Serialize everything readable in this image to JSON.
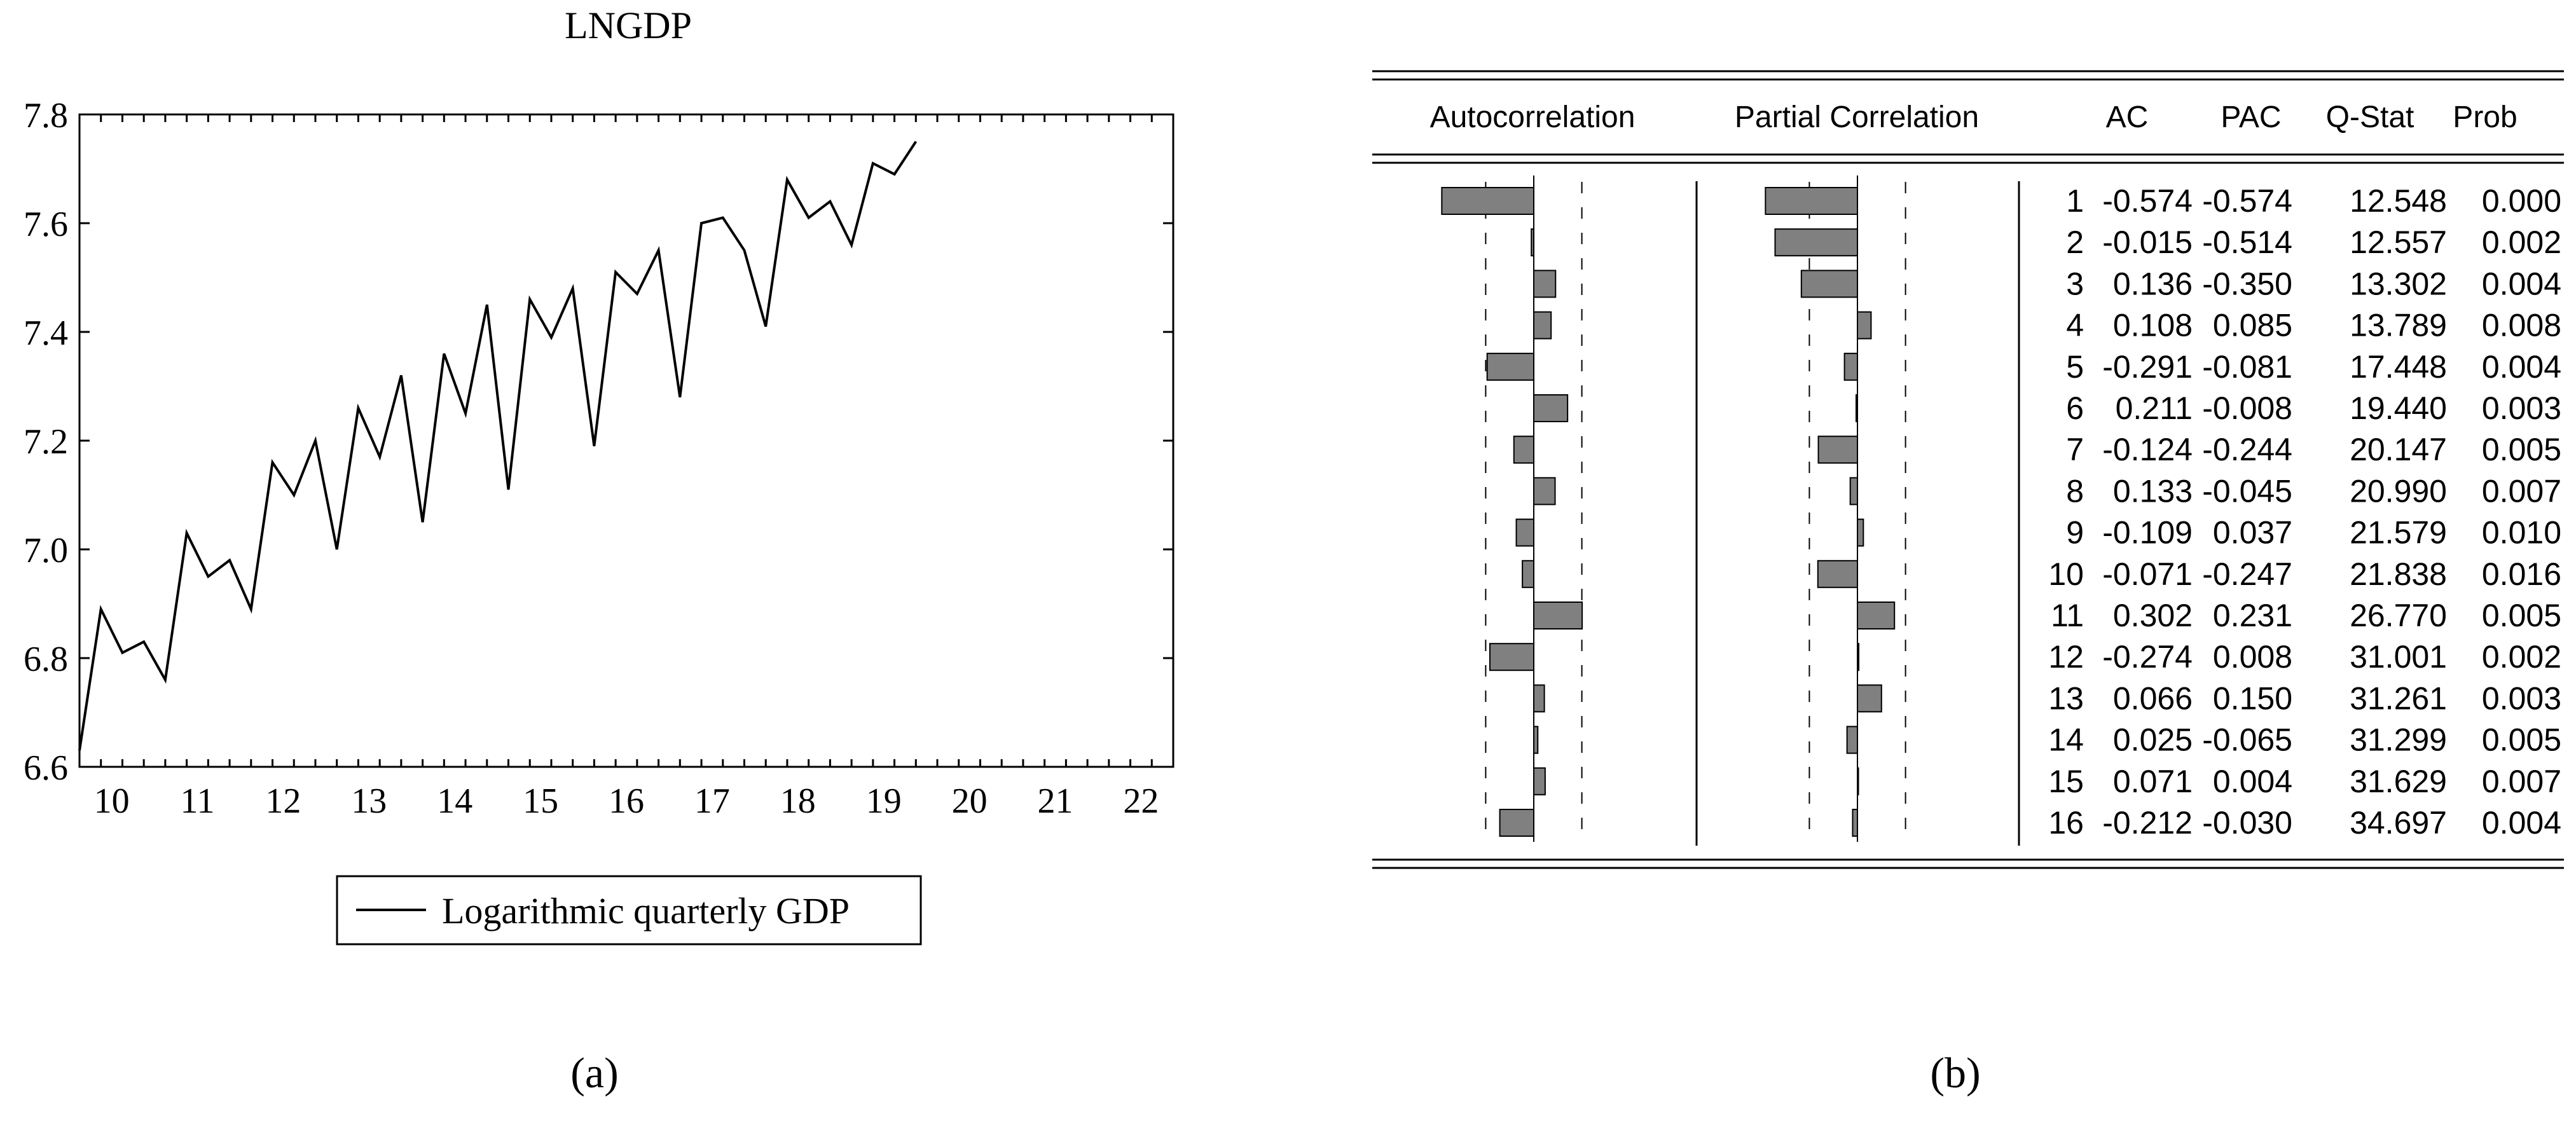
{
  "panel_a": {
    "caption": "(a)",
    "legend_label": "Logarithmic quarterly GDP",
    "line_color": "#000000"
  },
  "panel_b": {
    "caption": "(b)",
    "header": {
      "autocorrelation": "Autocorrelation",
      "partial_correlation": "Partial Correlation",
      "ac": "AC",
      "pac": "PAC",
      "qstat": "Q-Stat",
      "prob": "Prob"
    },
    "bar_fill": "#808080"
  },
  "chart_data": [
    {
      "type": "line",
      "title": "LNGDP",
      "xlabel": "",
      "ylabel": "",
      "x_ticks": [
        "10",
        "11",
        "12",
        "13",
        "14",
        "15",
        "16",
        "17",
        "18",
        "19",
        "20",
        "21",
        "22"
      ],
      "y_ticks": [
        "6.6",
        "6.8",
        "7.0",
        "7.2",
        "7.4",
        "7.6",
        "7.8"
      ],
      "xlim": [
        9.75,
        22.5
      ],
      "ylim": [
        6.6,
        7.8
      ],
      "grid": false,
      "legend_position": "bottom",
      "series": [
        {
          "name": "Logarithmic quarterly GDP",
          "x": [
            9.75,
            10.0,
            10.25,
            10.5,
            10.75,
            11.0,
            11.25,
            11.5,
            11.75,
            12.0,
            12.25,
            12.5,
            12.75,
            13.0,
            13.25,
            13.5,
            13.75,
            14.0,
            14.25,
            14.5,
            14.75,
            15.0,
            15.25,
            15.5,
            15.75,
            16.0,
            16.25,
            16.5,
            16.75,
            17.0,
            17.25,
            17.5,
            17.75,
            18.0,
            18.25,
            18.5,
            18.75,
            19.0,
            19.25,
            19.5
          ],
          "values": [
            6.63,
            6.89,
            6.81,
            6.83,
            6.76,
            7.03,
            6.95,
            6.98,
            6.89,
            7.16,
            7.1,
            7.2,
            7.0,
            7.26,
            7.17,
            7.32,
            7.05,
            7.36,
            7.25,
            7.45,
            7.11,
            7.46,
            7.39,
            7.48,
            7.19,
            7.51,
            7.47,
            7.55,
            7.28,
            7.6,
            7.61,
            7.55,
            7.41,
            7.68,
            7.61,
            7.64,
            7.56,
            7.71,
            7.69,
            7.75
          ]
        }
      ]
    },
    {
      "type": "table",
      "title": "",
      "columns": [
        "Autocorrelation",
        "Partial Correlation",
        "",
        "AC",
        "PAC",
        "Q-Stat",
        "Prob"
      ],
      "bar_axis_range": [
        -0.6,
        0.6
      ],
      "confidence_band": [
        -0.3,
        0.3
      ],
      "lags": [
        "1",
        "2",
        "3",
        "4",
        "5",
        "6",
        "7",
        "8",
        "9",
        "10",
        "11",
        "12",
        "13",
        "14",
        "15",
        "16"
      ],
      "ac": [
        "-0.574",
        "-0.015",
        "0.136",
        "0.108",
        "-0.291",
        "0.211",
        "-0.124",
        "0.133",
        "-0.109",
        "-0.071",
        "0.302",
        "-0.274",
        "0.066",
        "0.025",
        "0.071",
        "-0.212"
      ],
      "pac": [
        "-0.574",
        "-0.514",
        "-0.350",
        "0.085",
        "-0.081",
        "-0.008",
        "-0.244",
        "-0.045",
        "0.037",
        "-0.247",
        "0.231",
        "0.008",
        "0.150",
        "-0.065",
        "0.004",
        "-0.030"
      ],
      "q_stat": [
        "12.548",
        "12.557",
        "13.302",
        "13.789",
        "17.448",
        "19.440",
        "20.147",
        "20.990",
        "21.579",
        "21.838",
        "26.770",
        "31.001",
        "31.261",
        "31.299",
        "31.629",
        "34.697"
      ],
      "prob": [
        "0.000",
        "0.002",
        "0.004",
        "0.008",
        "0.004",
        "0.003",
        "0.005",
        "0.007",
        "0.010",
        "0.016",
        "0.005",
        "0.002",
        "0.003",
        "0.005",
        "0.007",
        "0.004"
      ]
    }
  ]
}
